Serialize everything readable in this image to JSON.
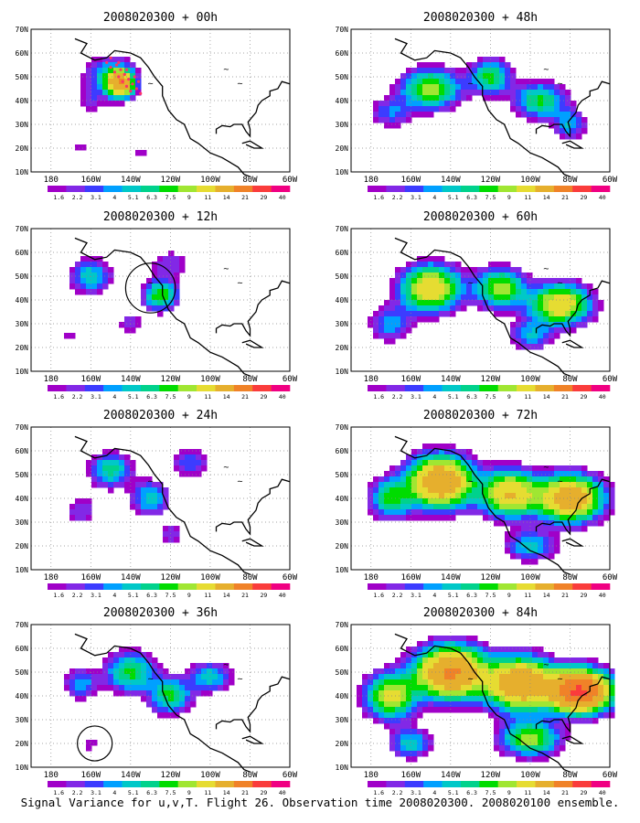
{
  "figure": {
    "caption": "Signal Variance for u,v,T. Flight 26. Observation time 2008020300. 2008020100 ensemble."
  },
  "axes": {
    "lat_ticks": [
      "10N",
      "20N",
      "30N",
      "40N",
      "50N",
      "60N",
      "70N"
    ],
    "lon_ticks": [
      "180",
      "160W",
      "140W",
      "120W",
      "100W",
      "80W",
      "60W"
    ],
    "lon_range": [
      -190,
      -60
    ],
    "lat_range": [
      10,
      70
    ],
    "grid": "dotted"
  },
  "colorbar": {
    "labels": [
      "1.6",
      "2.2",
      "3.1",
      "4",
      "5.1",
      "6.3",
      "7.5",
      "9",
      "11",
      "14",
      "21",
      "29",
      "40"
    ],
    "colors": [
      "#ffffff",
      "#a000c8",
      "#8228e6",
      "#3c3cff",
      "#00a0ff",
      "#00c8c8",
      "#00d28c",
      "#00dc00",
      "#a0e632",
      "#e6dc32",
      "#e6af2d",
      "#f08228",
      "#fa3c3c",
      "#f00082"
    ]
  },
  "chart_data": [
    {
      "type": "heatmap",
      "title": "2008020300 + 00h",
      "field": "signal variance",
      "blobs": [
        [
          -150,
          50,
          12,
          8,
          6
        ],
        [
          -145,
          47,
          6,
          5,
          18
        ],
        [
          -160,
          40,
          6,
          5,
          2.5
        ],
        [
          -165,
          20,
          5,
          4,
          1.8
        ],
        [
          -135,
          18,
          5,
          4,
          2
        ]
      ],
      "observation_points": [
        [
          -152,
          56
        ],
        [
          -150,
          54
        ],
        [
          -148,
          52
        ],
        [
          -146,
          50
        ],
        [
          -144,
          48
        ],
        [
          -142,
          46
        ],
        [
          -140,
          44
        ],
        [
          -147,
          55
        ],
        [
          -145,
          53
        ],
        [
          -143,
          51
        ],
        [
          -141,
          49
        ],
        [
          -139,
          47
        ],
        [
          -137,
          45
        ],
        [
          -135,
          43
        ],
        [
          -150,
          58
        ],
        [
          -146,
          56
        ],
        [
          -142,
          53
        ],
        [
          -138,
          50
        ],
        [
          -136,
          48
        ]
      ]
    },
    {
      "type": "heatmap",
      "title": "2008020300 + 12h",
      "field": "signal variance",
      "blobs": [
        [
          -160,
          50,
          10,
          7,
          6
        ],
        [
          -125,
          42,
          8,
          6,
          9
        ],
        [
          -140,
          30,
          6,
          5,
          3
        ],
        [
          -170,
          25,
          5,
          5,
          2
        ],
        [
          -120,
          55,
          10,
          6,
          3
        ]
      ],
      "circle": [
        -130,
        45,
        10
      ]
    },
    {
      "type": "heatmap",
      "title": "2008020300 + 24h",
      "field": "signal variance",
      "blobs": [
        [
          -150,
          52,
          10,
          7,
          7
        ],
        [
          -130,
          40,
          9,
          7,
          6
        ],
        [
          -165,
          35,
          8,
          6,
          3
        ],
        [
          -110,
          55,
          10,
          6,
          4
        ],
        [
          -120,
          25,
          6,
          5,
          3
        ]
      ]
    },
    {
      "type": "heatmap",
      "title": "2008020300 + 36h",
      "field": "signal variance",
      "blobs": [
        [
          -140,
          50,
          12,
          8,
          8
        ],
        [
          -120,
          40,
          10,
          7,
          8
        ],
        [
          -165,
          45,
          8,
          6,
          5
        ],
        [
          -100,
          48,
          10,
          6,
          6
        ],
        [
          -160,
          20,
          6,
          5,
          2
        ]
      ],
      "circle": [
        -158,
        20,
        7
      ]
    },
    {
      "type": "heatmap",
      "title": "2008020300 + 48h",
      "field": "signal variance",
      "blobs": [
        [
          -150,
          45,
          14,
          8,
          10
        ],
        [
          -120,
          50,
          10,
          7,
          8
        ],
        [
          -95,
          40,
          12,
          7,
          8
        ],
        [
          -170,
          35,
          10,
          6,
          4
        ],
        [
          -80,
          30,
          8,
          6,
          5
        ]
      ]
    },
    {
      "type": "heatmap",
      "title": "2008020300 + 60h",
      "field": "signal variance",
      "blobs": [
        [
          -150,
          45,
          14,
          9,
          14
        ],
        [
          -115,
          45,
          12,
          8,
          10
        ],
        [
          -85,
          38,
          14,
          8,
          14
        ],
        [
          -170,
          30,
          10,
          7,
          5
        ],
        [
          -100,
          25,
          10,
          6,
          5
        ]
      ]
    },
    {
      "type": "heatmap",
      "title": "2008020300 + 72h",
      "field": "signal variance",
      "blobs": [
        [
          -145,
          47,
          15,
          10,
          20
        ],
        [
          -110,
          42,
          14,
          9,
          14
        ],
        [
          -80,
          40,
          15,
          9,
          18
        ],
        [
          -170,
          40,
          10,
          8,
          8
        ],
        [
          -100,
          20,
          12,
          6,
          6
        ]
      ]
    },
    {
      "type": "heatmap",
      "title": "2008020300 + 84h",
      "field": "signal variance",
      "blobs": [
        [
          -140,
          50,
          16,
          10,
          22
        ],
        [
          -105,
          45,
          16,
          10,
          20
        ],
        [
          -75,
          42,
          14,
          8,
          30
        ],
        [
          -170,
          40,
          12,
          9,
          12
        ],
        [
          -100,
          22,
          14,
          7,
          10
        ],
        [
          -160,
          20,
          10,
          6,
          6
        ]
      ]
    }
  ]
}
